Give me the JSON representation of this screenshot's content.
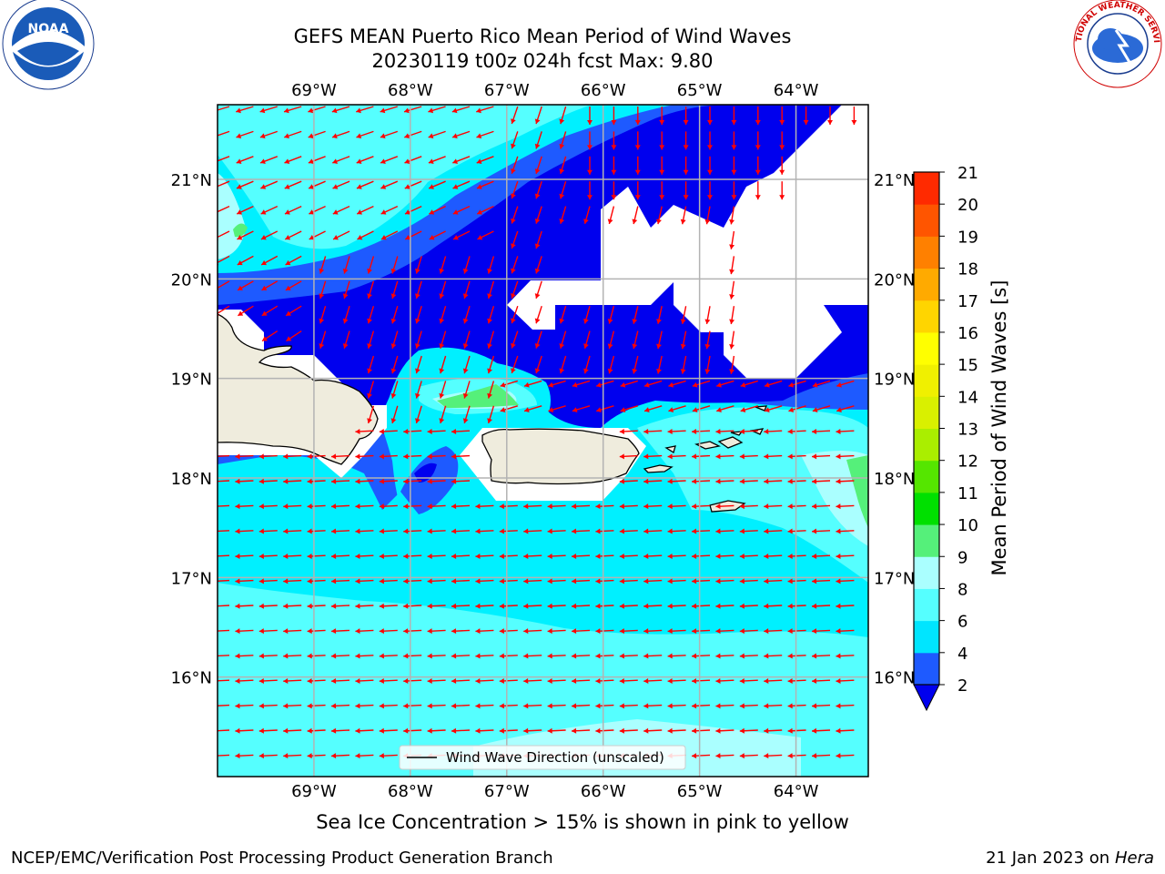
{
  "title": {
    "line1": "GEFS MEAN Puerto Rico Mean Period of Wind Waves",
    "line2": "20230119 t00z 024h fcst   Max: 9.80"
  },
  "map": {
    "lon_labels": [
      "69°W",
      "68°W",
      "67°W",
      "66°W",
      "65°W",
      "64°W"
    ],
    "lat_labels": [
      "21°N",
      "20°N",
      "19°N",
      "18°N",
      "17°N",
      "16°N"
    ],
    "lon_range": [
      -70.0,
      -63.25
    ],
    "lat_range": [
      15.0,
      21.75
    ],
    "legend_label": "Wind Wave Direction (unscaled)",
    "arrow_color": "#ff0000",
    "ocean_colors": {
      "2-4": "#0000ee",
      "4-6": "#00e5ff",
      "6-8": "#55ffff",
      "8-9": "#aaffff",
      "land": "#efecdd",
      "missing": "#ffffff"
    }
  },
  "colorbar": {
    "label": "Mean Period of Wind Waves [s]",
    "ticks": [
      "2",
      "4",
      "6",
      "8",
      "9",
      "10",
      "11",
      "12",
      "13",
      "14",
      "15",
      "16",
      "17",
      "18",
      "19",
      "20",
      "21"
    ],
    "colors": [
      "#1e5aff",
      "#00e5ff",
      "#55ffff",
      "#aaffff",
      "#55f07a",
      "#00e000",
      "#55e600",
      "#aaee00",
      "#d9f000",
      "#f0f000",
      "#ffff00",
      "#ffd500",
      "#ffaa00",
      "#ff8000",
      "#ff5500",
      "#ff2a00"
    ],
    "underflow_color": "#0000ee"
  },
  "note": "Sea Ice Concentration > 15% is shown in pink to yellow",
  "footer": {
    "left": "NCEP/EMC/Verification Post Processing Product Generation Branch",
    "right_date": "21 Jan 2023 on ",
    "right_host": "Hera"
  },
  "logos": {
    "noaa": {
      "text": "NOAA",
      "icon": "noaa-logo"
    },
    "nws": {
      "text": "NATIONAL WEATHER SERVICE",
      "icon": "nws-logo"
    }
  }
}
